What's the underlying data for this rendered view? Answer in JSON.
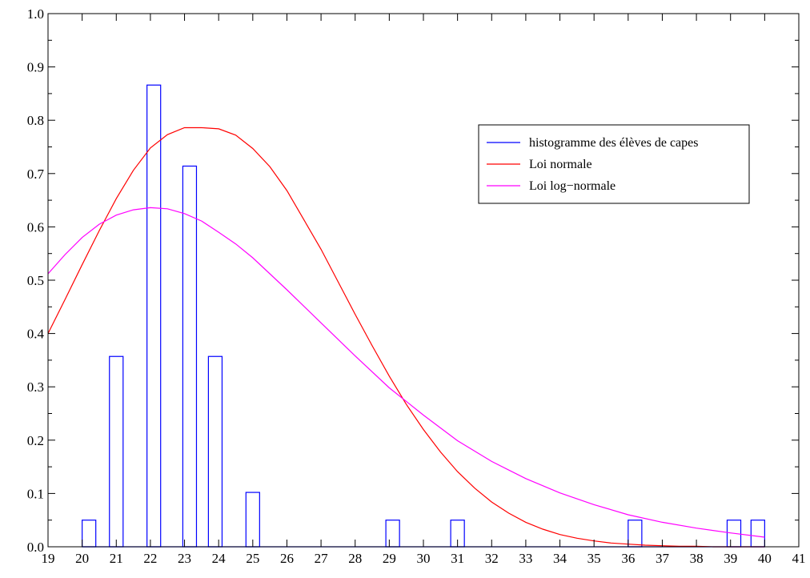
{
  "chart_data": {
    "type": "bar",
    "title": "",
    "xlabel": "",
    "ylabel": "",
    "xlim": [
      19,
      41
    ],
    "ylim": [
      0,
      1.0
    ],
    "x_ticks": [
      "19",
      "20",
      "21",
      "22",
      "23",
      "24",
      "25",
      "26",
      "27",
      "28",
      "29",
      "30",
      "31",
      "32",
      "33",
      "34",
      "35",
      "36",
      "37",
      "38",
      "39",
      "40",
      "41"
    ],
    "y_ticks": [
      "0.0",
      "0.1",
      "0.2",
      "0.3",
      "0.4",
      "0.5",
      "0.6",
      "0.7",
      "0.8",
      "0.9",
      "1.0"
    ],
    "grid": false,
    "legend_position": "top-right",
    "series": [
      {
        "name": "histogramme des élèves de capes",
        "kind": "bar",
        "color": "#0000ff",
        "bins": [
          {
            "x0": 20.0,
            "x1": 20.4,
            "value": 0.05
          },
          {
            "x0": 20.8,
            "x1": 21.2,
            "value": 0.357
          },
          {
            "x0": 21.9,
            "x1": 22.3,
            "value": 0.866
          },
          {
            "x0": 22.95,
            "x1": 23.35,
            "value": 0.714
          },
          {
            "x0": 23.7,
            "x1": 24.1,
            "value": 0.357
          },
          {
            "x0": 24.8,
            "x1": 25.2,
            "value": 0.102
          },
          {
            "x0": 28.9,
            "x1": 29.3,
            "value": 0.05
          },
          {
            "x0": 30.8,
            "x1": 31.2,
            "value": 0.05
          },
          {
            "x0": 36.0,
            "x1": 36.4,
            "value": 0.05
          },
          {
            "x0": 38.9,
            "x1": 39.3,
            "value": 0.05
          },
          {
            "x0": 39.6,
            "x1": 40.0,
            "value": 0.05
          }
        ]
      },
      {
        "name": "Loi normale",
        "kind": "line",
        "color": "#ff0000",
        "x": [
          19,
          19.5,
          20,
          20.5,
          21,
          21.5,
          22,
          22.5,
          23,
          23.5,
          24,
          24.5,
          25,
          25.5,
          26,
          26.5,
          27,
          27.5,
          28,
          28.5,
          29,
          29.5,
          30,
          30.5,
          31,
          31.5,
          32,
          32.5,
          33,
          33.5,
          34,
          34.5,
          35,
          35.5,
          36,
          36.5,
          37,
          37.5,
          38,
          38.5,
          39,
          39.5,
          40
        ],
        "y": [
          0.4,
          0.464,
          0.529,
          0.593,
          0.653,
          0.706,
          0.748,
          0.773,
          0.786,
          0.786,
          0.784,
          0.772,
          0.747,
          0.713,
          0.668,
          0.613,
          0.558,
          0.497,
          0.436,
          0.377,
          0.32,
          0.267,
          0.22,
          0.178,
          0.141,
          0.11,
          0.084,
          0.063,
          0.046,
          0.033,
          0.023,
          0.016,
          0.011,
          0.007,
          0.005,
          0.003,
          0.002,
          0.001,
          0.001,
          0.0,
          0.0,
          0.0,
          0.0
        ]
      },
      {
        "name": "Loi log−normale",
        "kind": "line",
        "color": "#ff00ff",
        "x": [
          19,
          19.5,
          20,
          20.5,
          21,
          21.5,
          22,
          22.5,
          23,
          23.5,
          24,
          24.5,
          25,
          26,
          27,
          28,
          29,
          30,
          31,
          32,
          33,
          34,
          35,
          36,
          37,
          38,
          39,
          40
        ],
        "y": [
          0.512,
          0.548,
          0.58,
          0.605,
          0.622,
          0.632,
          0.636,
          0.634,
          0.625,
          0.611,
          0.59,
          0.568,
          0.542,
          0.482,
          0.42,
          0.358,
          0.298,
          0.247,
          0.199,
          0.16,
          0.128,
          0.101,
          0.079,
          0.06,
          0.046,
          0.035,
          0.026,
          0.018
        ]
      }
    ]
  }
}
